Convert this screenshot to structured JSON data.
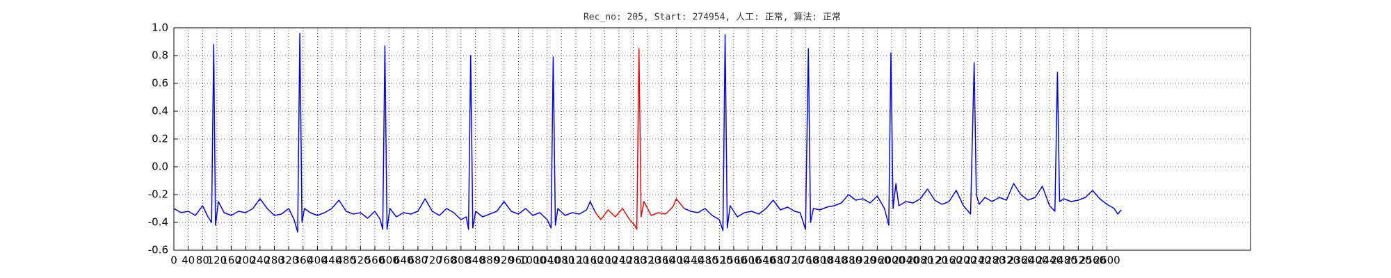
{
  "chart_data": {
    "type": "line",
    "title": "Rec_no: 205, Start: 274954, 人工: 正常, 算法: 正常",
    "xlim": [
      0,
      3000
    ],
    "xticks": [
      0,
      40,
      80,
      120,
      160,
      200,
      240,
      280,
      320,
      360,
      400,
      440,
      480,
      520,
      560,
      600,
      640,
      680,
      720,
      760,
      800,
      840,
      880,
      920,
      960,
      1000,
      1040,
      1080,
      1120,
      1160,
      1200,
      1240,
      1280,
      1320,
      1360,
      1400,
      1440,
      1480,
      1520,
      1560,
      1600,
      1640,
      1680,
      1720,
      1760,
      1800,
      1840,
      1880,
      1920,
      1960,
      2000,
      2040,
      2080,
      2120,
      2160,
      2200,
      2240,
      2280,
      2320,
      2360,
      2400,
      2440,
      2480,
      2520,
      2560,
      2600
    ],
    "ylim": [
      -0.6,
      1.0
    ],
    "yticks": [
      -0.6,
      -0.4,
      -0.2,
      {
        "value": 0,
        "label": "0.0"
      },
      0.2,
      0.4,
      0.6,
      0.8,
      {
        "value": 1,
        "label": "1.0"
      }
    ],
    "grid": true,
    "series": [
      {
        "color": "#0000ff",
        "x": [
          0,
          20,
          40,
          60,
          80,
          95,
          105,
          111,
          116,
          124,
          140,
          160,
          180,
          200,
          220,
          240,
          260,
          280,
          300,
          320,
          335,
          345,
          351,
          357,
          364,
          380,
          400,
          420,
          440,
          460,
          480,
          500,
          520,
          540,
          560,
          575,
          582,
          588,
          594,
          602,
          620,
          640,
          660,
          680,
          700,
          720,
          740,
          760,
          780,
          800,
          815,
          821,
          827,
          833,
          841,
          860,
          880,
          900,
          920,
          940,
          960,
          980,
          1000,
          1020,
          1040,
          1051,
          1057,
          1063,
          1070,
          1090,
          1110,
          1130,
          1150,
          1160,
          1175
        ],
        "values": [
          -0.3,
          -0.33,
          -0.32,
          -0.35,
          -0.28,
          -0.36,
          -0.4,
          0.88,
          -0.42,
          -0.25,
          -0.33,
          -0.35,
          -0.32,
          -0.33,
          -0.3,
          -0.23,
          -0.3,
          -0.35,
          -0.34,
          -0.3,
          -0.38,
          -0.47,
          0.96,
          -0.4,
          -0.3,
          -0.33,
          -0.35,
          -0.33,
          -0.3,
          -0.24,
          -0.32,
          -0.34,
          -0.33,
          -0.37,
          -0.32,
          -0.38,
          -0.45,
          0.87,
          -0.45,
          -0.3,
          -0.36,
          -0.33,
          -0.34,
          -0.32,
          -0.23,
          -0.32,
          -0.35,
          -0.3,
          -0.33,
          -0.38,
          -0.36,
          -0.45,
          0.8,
          -0.44,
          -0.32,
          -0.36,
          -0.34,
          -0.32,
          -0.25,
          -0.32,
          -0.34,
          -0.3,
          -0.35,
          -0.33,
          -0.38,
          -0.44,
          0.79,
          -0.42,
          -0.3,
          -0.35,
          -0.33,
          -0.34,
          -0.31,
          -0.25,
          -0.33
        ]
      },
      {
        "color": "#ff0000",
        "x": [
          1175,
          1190,
          1210,
          1230,
          1250,
          1270,
          1284,
          1290,
          1296,
          1302,
          1310,
          1330,
          1350,
          1370,
          1390,
          1400,
          1422
        ],
        "values": [
          -0.33,
          -0.38,
          -0.31,
          -0.36,
          -0.3,
          -0.38,
          -0.42,
          -0.45,
          0.85,
          -0.36,
          -0.25,
          -0.35,
          -0.33,
          -0.34,
          -0.29,
          -0.23,
          -0.3
        ]
      },
      {
        "color": "#0000ff",
        "x": [
          1422,
          1440,
          1460,
          1480,
          1500,
          1520,
          1530,
          1536,
          1542,
          1550,
          1570,
          1590,
          1610,
          1630,
          1650,
          1670,
          1690,
          1710,
          1730,
          1745,
          1760,
          1768,
          1774,
          1782,
          1800,
          1820,
          1840,
          1860,
          1880,
          1900,
          1920,
          1940,
          1960,
          1980,
          1992,
          1998,
          2004,
          2012,
          2020,
          2040,
          2060,
          2080,
          2100,
          2120,
          2140,
          2160,
          2180,
          2200,
          2220,
          2230,
          2236,
          2244,
          2260,
          2280,
          2300,
          2320,
          2340,
          2360,
          2380,
          2400,
          2420,
          2440,
          2455,
          2462,
          2468,
          2480,
          2500,
          2520,
          2540,
          2560,
          2580,
          2600,
          2620,
          2630,
          2640
        ],
        "values": [
          -0.3,
          -0.32,
          -0.33,
          -0.3,
          -0.35,
          -0.38,
          -0.46,
          0.95,
          -0.44,
          -0.28,
          -0.36,
          -0.33,
          -0.32,
          -0.34,
          -0.3,
          -0.24,
          -0.31,
          -0.29,
          -0.32,
          -0.33,
          -0.45,
          0.85,
          -0.4,
          -0.3,
          -0.31,
          -0.29,
          -0.28,
          -0.26,
          -0.2,
          -0.24,
          -0.23,
          -0.26,
          -0.21,
          -0.3,
          -0.42,
          0.82,
          -0.3,
          -0.12,
          -0.28,
          -0.25,
          -0.26,
          -0.23,
          -0.16,
          -0.24,
          -0.27,
          -0.25,
          -0.17,
          -0.28,
          -0.34,
          0.75,
          -0.2,
          -0.27,
          -0.22,
          -0.25,
          -0.22,
          -0.24,
          -0.12,
          -0.2,
          -0.24,
          -0.22,
          -0.14,
          -0.28,
          -0.32,
          0.68,
          -0.25,
          -0.23,
          -0.25,
          -0.24,
          -0.22,
          -0.17,
          -0.23,
          -0.27,
          -0.3,
          -0.34,
          -0.31
        ]
      }
    ]
  }
}
